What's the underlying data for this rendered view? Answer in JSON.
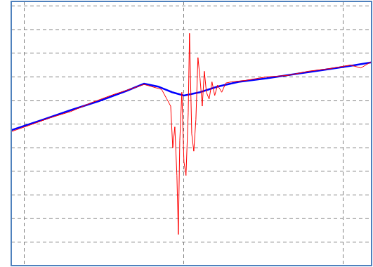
{
  "chart_data": {
    "type": "line",
    "xlim": [
      -0.08,
      2.18
    ],
    "xticks": [
      0,
      1,
      2
    ],
    "ylim": [
      0,
      11.2
    ],
    "yticks": [
      1,
      2,
      3,
      4,
      5,
      6,
      7,
      8,
      9,
      10,
      11
    ],
    "grid": true,
    "tick_labels": false,
    "series": [
      {
        "color": "#0000ff",
        "x": [
          -0.08,
          0.117,
          0.293,
          0.468,
          0.644,
          0.753,
          0.841,
          0.929,
          1.003,
          1.104,
          1.214,
          1.346,
          1.521,
          1.697,
          1.872,
          2.047,
          2.18
        ],
        "values": [
          5.74,
          6.18,
          6.59,
          6.97,
          7.41,
          7.71,
          7.59,
          7.35,
          7.21,
          7.35,
          7.59,
          7.79,
          7.94,
          8.12,
          8.29,
          8.47,
          8.62
        ]
      },
      {
        "color": "#ff0000",
        "x": [
          -0.08,
          0.03,
          0.161,
          0.293,
          0.424,
          0.556,
          0.688,
          0.753,
          0.863,
          0.92,
          0.933,
          0.946,
          0.959,
          0.968,
          0.977,
          0.99,
          1.003,
          1.016,
          1.03,
          1.038,
          1.052,
          1.065,
          1.078,
          1.091,
          1.104,
          1.118,
          1.131,
          1.144,
          1.161,
          1.179,
          1.196,
          1.214,
          1.24,
          1.266,
          1.302,
          1.389,
          1.521,
          1.652,
          1.784,
          1.916,
          2.047,
          2.113,
          2.18
        ],
        "values": [
          5.68,
          5.94,
          6.26,
          6.53,
          6.91,
          7.24,
          7.53,
          7.68,
          7.47,
          6.76,
          4.99,
          5.88,
          3.82,
          1.32,
          5.29,
          7.35,
          4.41,
          3.82,
          6.47,
          9.85,
          5.59,
          4.85,
          6.18,
          8.82,
          7.94,
          6.76,
          8.24,
          7.35,
          7.06,
          7.79,
          7.21,
          7.65,
          7.35,
          7.74,
          7.79,
          7.85,
          8.0,
          8.06,
          8.24,
          8.35,
          8.5,
          8.38,
          8.65
        ]
      }
    ]
  }
}
